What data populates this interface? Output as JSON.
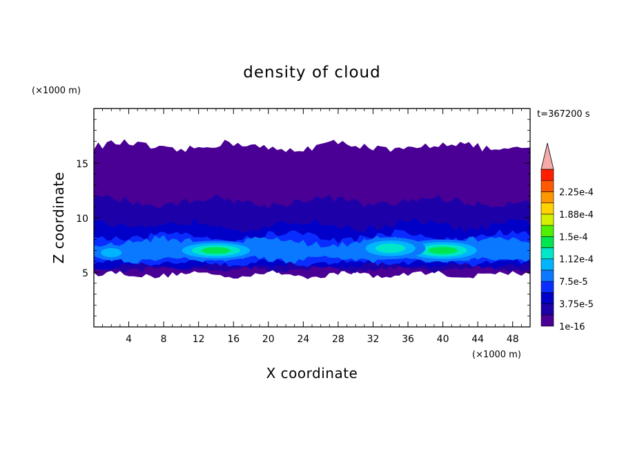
{
  "chart_data": {
    "type": "heatmap",
    "title": "density of cloud",
    "xlabel": "X coordinate",
    "ylabel": "Z coordinate",
    "x_unit": "(×1000 m)",
    "y_unit": "(×1000 m)",
    "time_label": "t=367200 s",
    "xlim": [
      0,
      50
    ],
    "ylim": [
      0,
      20
    ],
    "x_ticks": [
      4,
      8,
      12,
      16,
      20,
      24,
      28,
      32,
      36,
      40,
      44,
      48
    ],
    "y_ticks": [
      5,
      10,
      15
    ],
    "colorbar": {
      "levels": [
        1e-16,
        1.875e-05,
        3.75e-05,
        5.625e-05,
        7.5e-05,
        9.375e-05,
        0.0001125,
        0.00013125,
        0.00015,
        0.00016875,
        0.0001875,
        0.00020625,
        0.000225,
        0.00024375
      ],
      "labels": [
        "1e-16",
        "3.75e-5",
        "7.5e-5",
        "1.12e-4",
        "1.5e-4",
        "1.88e-4",
        "2.25e-4"
      ],
      "colors": [
        "#4b0095",
        "#1e00a8",
        "#0000c8",
        "#0a2dff",
        "#0a78ff",
        "#00b4ff",
        "#00e6c8",
        "#00e650",
        "#50f000",
        "#d2f000",
        "#ffd200",
        "#ff9600",
        "#ff5a00",
        "#ff1e00"
      ],
      "extend_color": "#f5aaaa"
    },
    "cloud_layers": [
      {
        "level_index": 0,
        "z_bottom": 4.8,
        "z_top": 16.5
      },
      {
        "level_index": 1,
        "z_bottom": 5.3,
        "z_top": 11.5
      },
      {
        "level_index": 2,
        "z_bottom": 5.6,
        "z_top": 9.3
      },
      {
        "level_index": 3,
        "z_bottom": 5.9,
        "z_top": 8.3
      },
      {
        "level_index": 4,
        "z_bottom": 6.2,
        "z_top": 7.8
      }
    ],
    "cloud_cores": [
      {
        "x": 14,
        "z": 7.0,
        "x_halfwidth": 5,
        "z_halfwidth": 0.9,
        "level_index": 7
      },
      {
        "x": 40,
        "z": 7.0,
        "x_halfwidth": 5,
        "z_halfwidth": 1.0,
        "level_index": 7
      },
      {
        "x": 2,
        "z": 6.8,
        "x_halfwidth": 2,
        "z_halfwidth": 0.7,
        "level_index": 5
      },
      {
        "x": 34,
        "z": 7.2,
        "x_halfwidth": 4,
        "z_halfwidth": 1.0,
        "level_index": 6
      }
    ]
  }
}
